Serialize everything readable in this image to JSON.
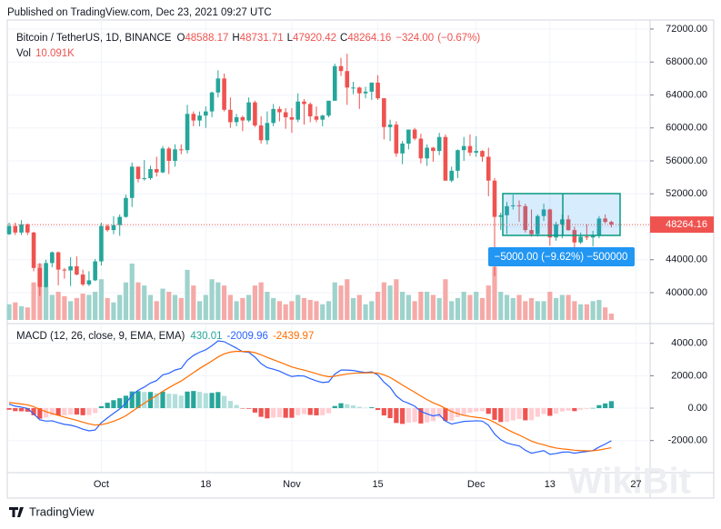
{
  "chart_data": {
    "type": "candlestick",
    "published": "Published on TradingView.com, Dec 23, 2021 09:27 UTC",
    "symbol": "Bitcoin / TetherUS, 1D, BINANCE",
    "ohlc_letters": [
      "O",
      "H",
      "L",
      "C"
    ],
    "change": {
      "value": -324,
      "label": "−324.00"
    },
    "change_pct": {
      "value": -0.67,
      "label": "(−0.67%)"
    },
    "volume_title": "Vol",
    "volume_header": {
      "value": 10.091,
      "label": "10.091K"
    },
    "footer": "TradingView",
    "watermark": "WikiBit",
    "measure_label": "−5000.00 (−9.62%)  −500000",
    "up_color": "#26a69a",
    "down_color": "#ef5350",
    "volume_up_color": "#9ed3cc",
    "volume_down_color": "#f5aaa8",
    "xlim": [
      -0.3,
      104.3
    ],
    "xticks": [
      {
        "value": 15,
        "label": "Oct"
      },
      {
        "value": 32,
        "label": "18"
      },
      {
        "value": 46,
        "label": "Nov"
      },
      {
        "value": 60,
        "label": "15"
      },
      {
        "value": 76,
        "label": "Dec"
      },
      {
        "value": 88,
        "label": "13"
      },
      {
        "value": 102,
        "label": "27"
      }
    ],
    "ylim": [
      36690,
      73100
    ],
    "yticks": [
      {
        "value": 40000,
        "label": "40000.00"
      },
      {
        "value": 44000,
        "label": "44000.00"
      },
      {
        "value": 48000,
        "label": "48000.00"
      },
      {
        "value": 52000,
        "label": "52000.00"
      },
      {
        "value": 56000,
        "label": "56000.00"
      },
      {
        "value": 60000,
        "label": "60000.00"
      },
      {
        "value": 64000,
        "label": "64000.00"
      },
      {
        "value": 68000,
        "label": "68000.00"
      },
      {
        "value": 72000,
        "label": "72000.00"
      }
    ],
    "grid": true,
    "candles": {
      "open": [
        47100,
        48100,
        47300,
        48300,
        47300,
        43000,
        40700,
        43600,
        44900,
        42800,
        42700,
        43200,
        42200,
        41000,
        41500,
        43800,
        48100,
        47600,
        48200,
        49200,
        51500,
        55300,
        53800,
        53900,
        55000,
        54600,
        57500,
        56000,
        57400,
        57300,
        61700,
        60900,
        61500,
        62000,
        64300,
        66000,
        62200,
        60700,
        61300,
        60900,
        63100,
        60300,
        58500,
        60600,
        62300,
        61900,
        61300,
        61000,
        63200,
        62900,
        61400,
        61000,
        61500,
        63300,
        67500,
        66900,
        64900,
        64900,
        64200,
        64400,
        65500,
        63600,
        60100,
        60400,
        56900,
        58100,
        59800,
        58700,
        56300,
        57600,
        57200,
        58900,
        53600,
        54800,
        57300,
        57800,
        57000,
        57200,
        56500,
        53600,
        49200,
        49400,
        50500,
        50600,
        50500,
        47600,
        47100,
        49300,
        50100,
        46700,
        48300,
        48900,
        47600,
        46100,
        46800,
        46700,
        46900,
        49000,
        48588.17
      ],
      "high": [
        48500,
        48500,
        48800,
        48400,
        47400,
        43600,
        44000,
        45000,
        45000,
        43000,
        44300,
        44400,
        42800,
        42600,
        44100,
        48500,
        48300,
        49300,
        49500,
        51900,
        55800,
        55300,
        56100,
        55400,
        56500,
        57800,
        57700,
        58000,
        58000,
        62800,
        62000,
        62000,
        62600,
        64400,
        67000,
        66600,
        63700,
        61700,
        61500,
        63700,
        63300,
        61400,
        62000,
        62900,
        62600,
        62400,
        62400,
        64200,
        63500,
        63100,
        62600,
        61600,
        63300,
        67800,
        68500,
        69000,
        65600,
        65000,
        65000,
        65500,
        66400,
        63600,
        61000,
        60800,
        58400,
        59800,
        60000,
        59300,
        58000,
        57700,
        59400,
        59200,
        55300,
        57400,
        58900,
        59200,
        59000,
        57300,
        57600,
        53900,
        49700,
        51000,
        51900,
        51200,
        50800,
        50100,
        49500,
        50800,
        50200,
        48600,
        49500,
        49400,
        48000,
        47300,
        48300,
        47500,
        49300,
        49500,
        48731.71
      ],
      "low": [
        47000,
        47000,
        47000,
        47000,
        42600,
        39600,
        40600,
        43100,
        40900,
        41700,
        40800,
        42100,
        40800,
        40800,
        41400,
        43300,
        47400,
        47100,
        46900,
        49100,
        50400,
        53400,
        53600,
        53700,
        54100,
        54500,
        54400,
        55300,
        56800,
        56900,
        60200,
        60200,
        60000,
        61300,
        63700,
        62000,
        60000,
        60200,
        59600,
        60700,
        60100,
        58100,
        58000,
        60200,
        60800,
        59900,
        59400,
        60700,
        60400,
        60700,
        60700,
        60200,
        61300,
        63300,
        66300,
        62800,
        64100,
        62300,
        63600,
        63400,
        63400,
        58600,
        58400,
        56500,
        55600,
        57400,
        58500,
        55700,
        55400,
        55900,
        56700,
        53600,
        53400,
        53900,
        56000,
        56600,
        56500,
        55900,
        51700,
        42000,
        47600,
        47100,
        50100,
        48600,
        47300,
        46800,
        46800,
        48700,
        45700,
        46300,
        46600,
        47500,
        45500,
        45900,
        46400,
        45600,
        46600,
        48400,
        47920.42
      ],
      "close": [
        48100,
        47300,
        48300,
        47300,
        43000,
        40700,
        43600,
        44900,
        42800,
        42700,
        43200,
        42200,
        41000,
        41500,
        43800,
        48100,
        47600,
        48200,
        49200,
        51500,
        55300,
        53800,
        53900,
        55000,
        54600,
        57500,
        56000,
        57400,
        57300,
        61700,
        60900,
        61500,
        62000,
        64300,
        66000,
        62200,
        60700,
        61300,
        60900,
        63100,
        60300,
        58500,
        60600,
        62300,
        61900,
        61300,
        61000,
        63200,
        62900,
        61400,
        61000,
        61500,
        63300,
        67500,
        66900,
        64900,
        64900,
        64200,
        64400,
        65500,
        63600,
        60100,
        60400,
        56900,
        58100,
        59800,
        58700,
        56300,
        57600,
        57200,
        58900,
        53600,
        54800,
        57300,
        57800,
        57000,
        57200,
        56500,
        53600,
        49200,
        49400,
        50500,
        50600,
        50500,
        47600,
        47100,
        49300,
        50100,
        46700,
        48300,
        48900,
        47600,
        46100,
        46800,
        46700,
        46900,
        49000,
        48590,
        48264.16
      ]
    },
    "volume": [
      25,
      28,
      22,
      20,
      60,
      90,
      55,
      40,
      45,
      38,
      30,
      35,
      42,
      40,
      45,
      65,
      35,
      28,
      40,
      60,
      90,
      60,
      55,
      40,
      30,
      50,
      45,
      40,
      35,
      80,
      55,
      30,
      40,
      65,
      60,
      55,
      40,
      30,
      35,
      40,
      55,
      60,
      45,
      35,
      30,
      25,
      30,
      40,
      35,
      32,
      30,
      25,
      30,
      60,
      55,
      65,
      35,
      40,
      25,
      30,
      45,
      60,
      55,
      65,
      45,
      40,
      30,
      45,
      45,
      40,
      35,
      65,
      30,
      35,
      45,
      40,
      45,
      35,
      55,
      85,
      45,
      40,
      35,
      40,
      30,
      35,
      30,
      30,
      45,
      35,
      40,
      40,
      30,
      25,
      25,
      30,
      32,
      20,
      10.091
    ],
    "macd": {
      "title": "MACD (12, 26, close, 9, EMA, EMA)",
      "ylim": [
        -3980,
        5160
      ],
      "yticks": [
        {
          "value": -2000,
          "label": "-2000.00"
        },
        {
          "value": 0,
          "label": "0.00"
        },
        {
          "value": 2000,
          "label": "2000.00"
        },
        {
          "value": 4000,
          "label": "4000.00"
        }
      ],
      "histogram": [
        -100,
        -184,
        -195,
        -220,
        -440,
        -648,
        -582,
        -450,
        -456,
        -445,
        -396,
        -397,
        -438,
        -430,
        -304,
        117,
        334,
        491,
        609,
        767,
        1030,
        1048,
        998,
        998,
        918,
        1014,
        891,
        873,
        778,
        1022,
        1058,
        1006,
        925,
        940,
        992,
        754,
        443,
        194,
        -21,
        -41,
        -273,
        -538,
        -630,
        -584,
        -563,
        -594,
        -595,
        -436,
        -365,
        -420,
        -448,
        -438,
        -318,
        130,
        304,
        243,
        170,
        80,
        24,
        51,
        -111,
        -449,
        -615,
        -916,
        -973,
        -898,
        -862,
        -946,
        -877,
        -806,
        -581,
        -785,
        -772,
        -554,
        -379,
        -287,
        -214,
        -187,
        -350,
        -720,
        -856,
        -845,
        -756,
        -669,
        -751,
        -745,
        -532,
        -362,
        -474,
        -339,
        -207,
        -150,
        -184,
        -99,
        -47,
        10,
        184,
        291,
        430.01
      ],
      "series": [
        {
          "name": "MACD",
          "color": "#2962ff",
          "values": [
            250,
            120,
            60,
            -20,
            -350,
            -720,
            -800,
            -780,
            -900,
            -1000,
            -1050,
            -1150,
            -1300,
            -1400,
            -1350,
            -900,
            -600,
            -320,
            -50,
            300,
            820,
            1100,
            1300,
            1550,
            1700,
            2050,
            2150,
            2350,
            2450,
            2950,
            3250,
            3450,
            3600,
            3850,
            4150,
            4100,
            3900,
            3700,
            3480,
            3450,
            3150,
            2750,
            2500,
            2400,
            2280,
            2100,
            1950,
            2000,
            1980,
            1820,
            1680,
            1580,
            1620,
            2100,
            2350,
            2350,
            2320,
            2250,
            2200,
            2240,
            2050,
            1600,
            1280,
            750,
            450,
            300,
            120,
            -200,
            -350,
            -480,
            -400,
            -800,
            -980,
            -900,
            -820,
            -800,
            -780,
            -800,
            -1050,
            -1600,
            -1950,
            -2150,
            -2250,
            -2330,
            -2600,
            -2780,
            -2700,
            -2620,
            -2850,
            -2800,
            -2720,
            -2700,
            -2780,
            -2720,
            -2680,
            -2620,
            -2400,
            -2220,
            -2009.96
          ]
        },
        {
          "name": "Signal",
          "color": "#ff6d00",
          "values": [
            350,
            304,
            255,
            200,
            90,
            -72,
            -218,
            -330,
            -444,
            -555,
            -654,
            -753,
            -862,
            -970,
            -1046,
            -1017,
            -934,
            -811,
            -659,
            -467,
            -210,
            52,
            302,
            552,
            782,
            1036,
            1259,
            1477,
            1672,
            1928,
            2192,
            2444,
            2675,
            2910,
            3158,
            3346,
            3457,
            3506,
            3501,
            3491,
            3423,
            3288,
            3130,
            2984,
            2843,
            2694,
            2545,
            2436,
            2345,
            2240,
            2128,
            2018,
            1938,
            1970,
            2046,
            2107,
            2150,
            2170,
            2176,
            2189,
            2161,
            2049,
            1895,
            1666,
            1423,
            1198,
            982,
            746,
            527,
            326,
            181,
            -15,
            -208,
            -346,
            -441,
            -513,
            -566,
            -613,
            -700,
            -880,
            -1094,
            -1305,
            -1494,
            -1661,
            -1849,
            -2035,
            -2168,
            -2258,
            -2376,
            -2461,
            -2513,
            -2550,
            -2596,
            -2621,
            -2633,
            -2630,
            -2584,
            -2511,
            -2439.97
          ]
        }
      ]
    }
  }
}
